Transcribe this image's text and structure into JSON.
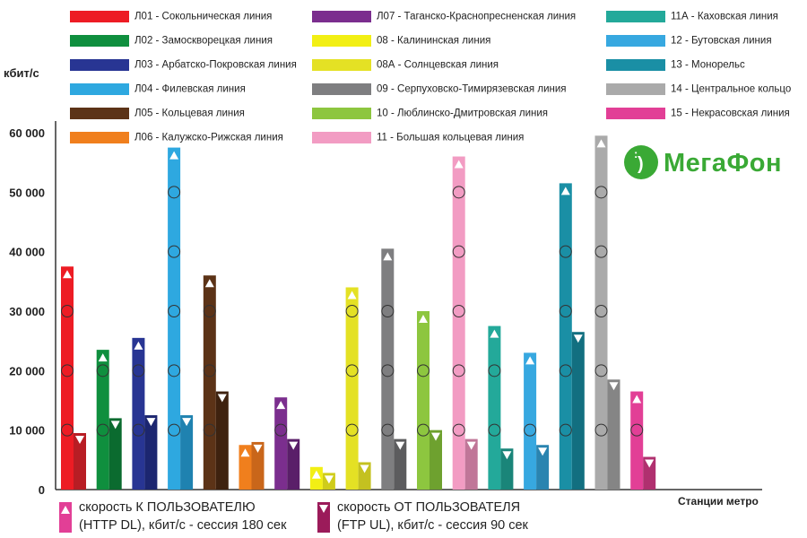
{
  "legend_items": [
    {
      "label": "Л01 - Сокольническая линия",
      "color": "#ed1c24"
    },
    {
      "label": "Л02 - Замоскворецкая линия",
      "color": "#0f8f3e"
    },
    {
      "label": "Л03 - Арбатско-Покровская линия",
      "color": "#283593"
    },
    {
      "label": "Л04 - Филевская линия",
      "color": "#2ea8e0"
    },
    {
      "label": "Л05 - Кольцевая линия",
      "color": "#5c3317"
    },
    {
      "label": "Л06 - Калужско-Рижская линия",
      "color": "#f07f1d"
    },
    {
      "label": "Л07 - Таганско-Краснопресненская линия",
      "color": "#7b2e8e"
    },
    {
      "label": "08 - Калининская линия",
      "color": "#f2ef14"
    },
    {
      "label": "08А - Солнцевская линия",
      "color": "#e4e124"
    },
    {
      "label": "09 - Серпуховско-Тимирязевская линия",
      "color": "#7e7e80"
    },
    {
      "label": "10 - Люблинско-Дмитровская линия",
      "color": "#8dc63f"
    },
    {
      "label": "11 - Большая кольцевая линия",
      "color": "#f29cc3"
    },
    {
      "label": "11А - Каховская линия",
      "color": "#23a99a"
    },
    {
      "label": "12 - Бутовская линия",
      "color": "#37a8e0"
    },
    {
      "label": "13 - Монорельс",
      "color": "#1a8fa5"
    },
    {
      "label": "14 - Центральное кольцо",
      "color": "#aaaaaa"
    },
    {
      "label": "15 - Некрасовская линия",
      "color": "#e23f96"
    }
  ],
  "logo_text": "МегаФон",
  "logo_color": "#3aa935",
  "bottom_legend": {
    "dl_line1": "скорость К ПОЛЬЗОВАТЕЛЮ",
    "dl_line2": "(HTTP DL), кбит/с - сессия 180 сек",
    "ul_line1": "скорость ОТ ПОЛЬЗОВАТЕЛЯ",
    "ul_line2": "(FTP UL), кбит/с - сессия 90 сек",
    "dl_color": "#e23f96",
    "ul_color": "#9b1b5a"
  },
  "chart_data": {
    "type": "bar",
    "ylabel": "кбит/с",
    "xlabel": "Станции метро",
    "ylim": [
      0,
      62000
    ],
    "yticks": [
      "0",
      "10 000",
      "20 000",
      "30 000",
      "40 000",
      "50 000",
      "60 000"
    ],
    "ytick_values": [
      0,
      10000,
      20000,
      30000,
      40000,
      50000,
      60000
    ],
    "grid": false,
    "categories": [
      "Л01",
      "Л02",
      "Л03",
      "Л04",
      "Л05",
      "Л06",
      "Л07",
      "08",
      "08А",
      "09",
      "10",
      "11",
      "11А",
      "12",
      "13",
      "14",
      "15"
    ],
    "series": [
      {
        "name": "скорость К ПОЛЬЗОВАТЕЛЮ (HTTP DL), кбит/с - сессия 180 сек",
        "values": [
          37500,
          23500,
          25500,
          57500,
          36000,
          7500,
          15500,
          3800,
          34000,
          40500,
          30000,
          56000,
          27500,
          23000,
          51500,
          59500,
          16500
        ]
      },
      {
        "name": "скорость ОТ ПОЛЬЗОВАТЕЛЯ (FTP UL), кбит/с - сессия 90 сек",
        "values": [
          9500,
          12000,
          12500,
          12500,
          16500,
          8000,
          8500,
          2800,
          4600,
          8500,
          10000,
          8500,
          6900,
          7500,
          26500,
          18500,
          5500
        ]
      }
    ],
    "colors": {
      "dl": [
        "#ed1c24",
        "#0f8f3e",
        "#283593",
        "#2ea8e0",
        "#5c3317",
        "#f07f1d",
        "#7b2e8e",
        "#f2ef14",
        "#e4e124",
        "#7e7e80",
        "#8dc63f",
        "#f29cc3",
        "#23a99a",
        "#37a8e0",
        "#1a8fa5",
        "#aaaaaa",
        "#e23f96"
      ],
      "ul": [
        "#b81d24",
        "#0b6b2f",
        "#1c2670",
        "#1f82b0",
        "#3e220f",
        "#c9661a",
        "#5a1f69",
        "#cfcc1a",
        "#c4c120",
        "#5c5c5e",
        "#6ea12f",
        "#c07698",
        "#1a8579",
        "#2a84b0",
        "#126f80",
        "#858585",
        "#b0306f"
      ]
    }
  }
}
